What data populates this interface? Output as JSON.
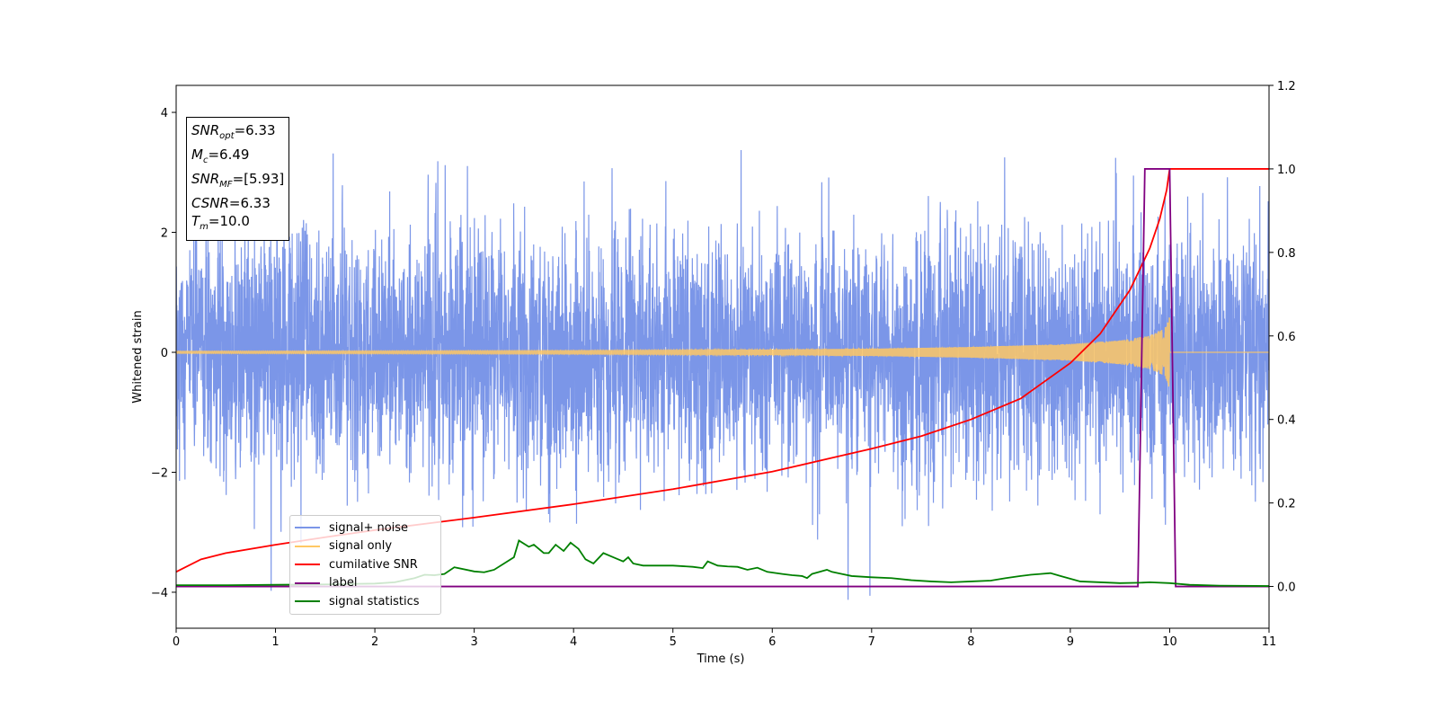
{
  "chart_data": {
    "type": "line",
    "xlabel": "Time (s)",
    "ylabel": "Whitened strain",
    "xlim": [
      0,
      11
    ],
    "ylim_left": [
      -4.6,
      4.45
    ],
    "ylim_right": [
      -0.1,
      1.2
    ],
    "x_ticks": [
      "0",
      "1",
      "2",
      "3",
      "4",
      "5",
      "6",
      "7",
      "8",
      "9",
      "10",
      "11"
    ],
    "y_ticks_left": [
      "−4",
      "−2",
      "0",
      "2",
      "4"
    ],
    "y_ticks_right": [
      "0.0",
      "0.2",
      "0.4",
      "0.6",
      "0.8",
      "1.0",
      "1.2"
    ],
    "grid": false,
    "legend_position": "lower-left",
    "annotations": {
      "snr_opt_sym": "SNR",
      "snr_opt_sub": "opt",
      "snr_opt_val": "=6.33",
      "mc_sym": "M",
      "mc_sub": "c",
      "mc_val": "=6.49",
      "snr_mf_sym": "SNR",
      "snr_mf_sub": "MF",
      "snr_mf_val": "=[5.93]",
      "csnr_sym": "CSNR",
      "csnr_val": "=6.33",
      "tm_sym": "T",
      "tm_sub": "m",
      "tm_val": "=10.0"
    },
    "series": [
      {
        "name": "signal+ noise",
        "color": "#7b96e8",
        "axis": "left",
        "description_values": {
          "std": 1.0,
          "max": 4.03,
          "min": -4.17
        }
      },
      {
        "name": "signal only",
        "color": "#ffc864",
        "axis": "left",
        "envelope": {
          "t": [
            0,
            2,
            4,
            6,
            7,
            8,
            9,
            9.5,
            9.8,
            9.95,
            10.0
          ],
          "amp": [
            0.02,
            0.025,
            0.03,
            0.045,
            0.06,
            0.09,
            0.14,
            0.2,
            0.28,
            0.4,
            0.6
          ]
        },
        "end_time": 10.0
      },
      {
        "name": "cumilative SNR",
        "color": "#ff0000",
        "axis": "right",
        "x": [
          0,
          0.25,
          0.5,
          1,
          1.5,
          2,
          3,
          4,
          5,
          6,
          7,
          7.5,
          8,
          8.5,
          9,
          9.3,
          9.6,
          9.8,
          9.9,
          9.97,
          10.0,
          11.0
        ],
        "y": [
          0.035,
          0.065,
          0.08,
          0.1,
          0.118,
          0.135,
          0.165,
          0.197,
          0.233,
          0.275,
          0.33,
          0.36,
          0.4,
          0.45,
          0.535,
          0.605,
          0.71,
          0.81,
          0.88,
          0.95,
          1.0,
          1.0
        ]
      },
      {
        "name": "label",
        "color": "#800080",
        "axis": "right",
        "x": [
          0,
          9.68,
          9.75,
          10.0,
          10.06,
          11.0
        ],
        "y": [
          0,
          0,
          1,
          1,
          0,
          0
        ]
      },
      {
        "name": "signal statistics",
        "color": "#008000",
        "axis": "right",
        "x": [
          0,
          0.5,
          1,
          1.5,
          2,
          2.2,
          2.4,
          2.5,
          2.6,
          2.7,
          2.8,
          3.0,
          3.1,
          3.2,
          3.3,
          3.4,
          3.45,
          3.55,
          3.6,
          3.7,
          3.75,
          3.82,
          3.9,
          3.97,
          4.05,
          4.12,
          4.2,
          4.3,
          4.4,
          4.5,
          4.55,
          4.6,
          4.7,
          4.8,
          5.0,
          5.2,
          5.3,
          5.35,
          5.45,
          5.55,
          5.65,
          5.75,
          5.85,
          5.95,
          6.1,
          6.2,
          6.3,
          6.35,
          6.4,
          6.55,
          6.6,
          6.7,
          6.8,
          7.0,
          7.2,
          7.4,
          7.6,
          7.8,
          8.0,
          8.2,
          8.35,
          8.5,
          8.6,
          8.7,
          8.8,
          8.9,
          9.1,
          9.5,
          9.7,
          9.8,
          10.0,
          10.2,
          10.5,
          11.0
        ],
        "y": [
          0.003,
          0.003,
          0.004,
          0.005,
          0.007,
          0.01,
          0.02,
          0.028,
          0.027,
          0.03,
          0.046,
          0.036,
          0.034,
          0.04,
          0.055,
          0.07,
          0.11,
          0.095,
          0.1,
          0.08,
          0.08,
          0.1,
          0.085,
          0.105,
          0.09,
          0.065,
          0.055,
          0.08,
          0.07,
          0.06,
          0.07,
          0.055,
          0.05,
          0.05,
          0.05,
          0.047,
          0.044,
          0.06,
          0.05,
          0.048,
          0.047,
          0.04,
          0.045,
          0.035,
          0.03,
          0.027,
          0.025,
          0.02,
          0.03,
          0.04,
          0.035,
          0.03,
          0.025,
          0.022,
          0.02,
          0.015,
          0.012,
          0.01,
          0.012,
          0.014,
          0.02,
          0.025,
          0.028,
          0.03,
          0.032,
          0.025,
          0.012,
          0.008,
          0.009,
          0.01,
          0.008,
          0.004,
          0.002,
          0.001
        ]
      }
    ]
  }
}
